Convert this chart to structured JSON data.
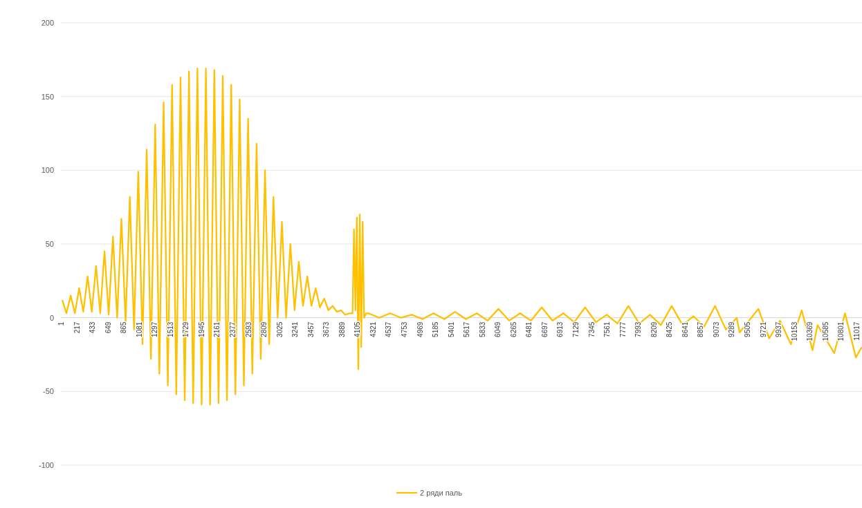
{
  "chart_data": {
    "type": "line",
    "legend": "bottom",
    "grid": "y",
    "line_style": "solid",
    "marker": "none",
    "ylim": [
      -100,
      200
    ],
    "yticks": [
      -100,
      -50,
      0,
      50,
      100,
      150,
      200
    ],
    "xlim": [
      1,
      11095
    ],
    "xticks": [
      1,
      217,
      433,
      649,
      865,
      1081,
      1297,
      1513,
      1729,
      1945,
      2161,
      2377,
      2593,
      2809,
      3025,
      3241,
      3457,
      3673,
      3889,
      4105,
      4321,
      4537,
      4753,
      4969,
      5185,
      5401,
      5617,
      5833,
      6049,
      6265,
      6481,
      6697,
      6913,
      7129,
      7345,
      7561,
      7777,
      7993,
      8209,
      8425,
      8641,
      8857,
      9073,
      9289,
      9505,
      9721,
      9937,
      10153,
      10369,
      10585,
      10801,
      11017
    ],
    "series": [
      {
        "name": "2 ряди паль",
        "color": "#ffc000",
        "x": [
          20,
          78,
          137,
          195,
          254,
          312,
          371,
          429,
          488,
          546,
          605,
          663,
          722,
          780,
          839,
          897,
          956,
          1014,
          1073,
          1131,
          1190,
          1248,
          1307,
          1365,
          1424,
          1482,
          1541,
          1599,
          1658,
          1716,
          1775,
          1833,
          1892,
          1950,
          2009,
          2067,
          2126,
          2184,
          2243,
          2301,
          2360,
          2418,
          2477,
          2535,
          2594,
          2652,
          2711,
          2769,
          2828,
          2886,
          2945,
          3003,
          3062,
          3120,
          3179,
          3237,
          3296,
          3354,
          3413,
          3471,
          3530,
          3588,
          3647,
          3705,
          3764,
          3822,
          3881,
          3939,
          3998,
          4040,
          4060,
          4080,
          4100,
          4120,
          4140,
          4160,
          4180,
          4200,
          4230,
          4260,
          4410,
          4560,
          4710,
          4860,
          5010,
          5160,
          5310,
          5460,
          5610,
          5760,
          5910,
          6060,
          6210,
          6360,
          6510,
          6660,
          6810,
          6960,
          7110,
          7260,
          7410,
          7560,
          7710,
          7860,
          8010,
          8160,
          8310,
          8460,
          8610,
          8760,
          8910,
          9060,
          9210,
          9360,
          9400,
          9660,
          9810,
          9960,
          10110,
          10260,
          10410,
          10480,
          10710,
          10860,
          11010,
          11090
        ],
        "values": [
          12,
          3,
          15,
          3,
          20,
          4,
          28,
          4,
          35,
          3,
          45,
          2,
          55,
          0,
          67,
          -3,
          82,
          -8,
          99,
          -18,
          114,
          -28,
          131,
          -38,
          146,
          -46,
          158,
          -52,
          163,
          -56,
          167,
          -58,
          169,
          -59,
          169,
          -59,
          168,
          -58,
          164,
          -56,
          158,
          -52,
          148,
          -46,
          135,
          -38,
          118,
          -28,
          100,
          -18,
          82,
          0,
          65,
          0,
          50,
          5,
          38,
          8,
          28,
          8,
          20,
          7,
          13,
          5,
          8,
          4,
          5,
          2,
          3,
          3,
          60,
          5,
          68,
          -35,
          70,
          -20,
          65,
          0,
          3,
          3,
          0,
          3,
          0,
          2,
          -1,
          3,
          -1,
          4,
          -1,
          3,
          -2,
          6,
          -2,
          3,
          -2,
          7,
          -2,
          3,
          -3,
          7,
          -3,
          2,
          -4,
          8,
          -4,
          2,
          -5,
          8,
          -5,
          1,
          -6,
          8,
          -8,
          0,
          -10,
          6,
          -14,
          -2,
          -18,
          5,
          -22,
          -5,
          -24,
          3,
          -27,
          -20
        ]
      }
    ]
  }
}
